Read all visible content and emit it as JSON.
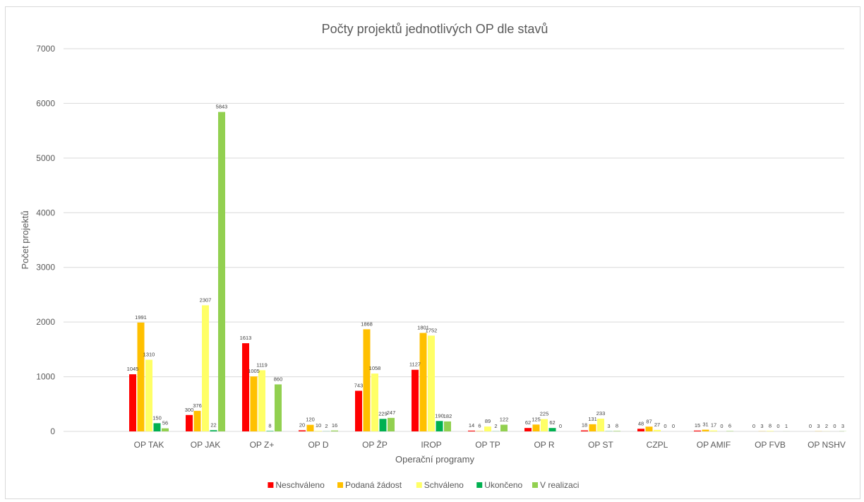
{
  "chart_data": {
    "type": "bar",
    "title": "Počty projektů jednotlivých OP dle stavů",
    "xlabel": "Operační programy",
    "ylabel": "Počet projektů",
    "ylim": [
      0,
      7000
    ],
    "yticks": [
      0,
      1000,
      2000,
      3000,
      4000,
      5000,
      6000,
      7000
    ],
    "grid": true,
    "legend_position": "bottom",
    "categories": [
      "OP TAK",
      "OP JAK",
      "OP Z+",
      "OP D",
      "OP ŽP",
      "IROP",
      "OP TP",
      "OP R",
      "OP ST",
      "CZPL",
      "OP AMIF",
      "OP FVB",
      "OP NSHV"
    ],
    "series": [
      {
        "name": "Neschváleno",
        "color": "#ff0000",
        "values": [
          1045,
          300,
          1613,
          20,
          743,
          1127,
          14,
          62,
          18,
          48,
          15,
          0,
          0
        ]
      },
      {
        "name": "Podaná žádost",
        "color": "#ffc000",
        "values": [
          1991,
          376,
          1005,
          120,
          1868,
          1801,
          6,
          125,
          131,
          87,
          31,
          3,
          3
        ]
      },
      {
        "name": "Schváleno",
        "color": "#ffff66",
        "values": [
          1310,
          2307,
          1119,
          10,
          1058,
          1752,
          89,
          225,
          233,
          27,
          17,
          8,
          2
        ]
      },
      {
        "name": "Ukončeno",
        "color": "#00b050",
        "values": [
          150,
          22,
          8,
          2,
          229,
          190,
          2,
          62,
          3,
          0,
          0,
          0,
          0
        ]
      },
      {
        "name": "V realizaci",
        "color": "#92d050",
        "values": [
          56,
          5843,
          860,
          16,
          247,
          182,
          122,
          0,
          8,
          0,
          6,
          1,
          3
        ]
      }
    ]
  }
}
